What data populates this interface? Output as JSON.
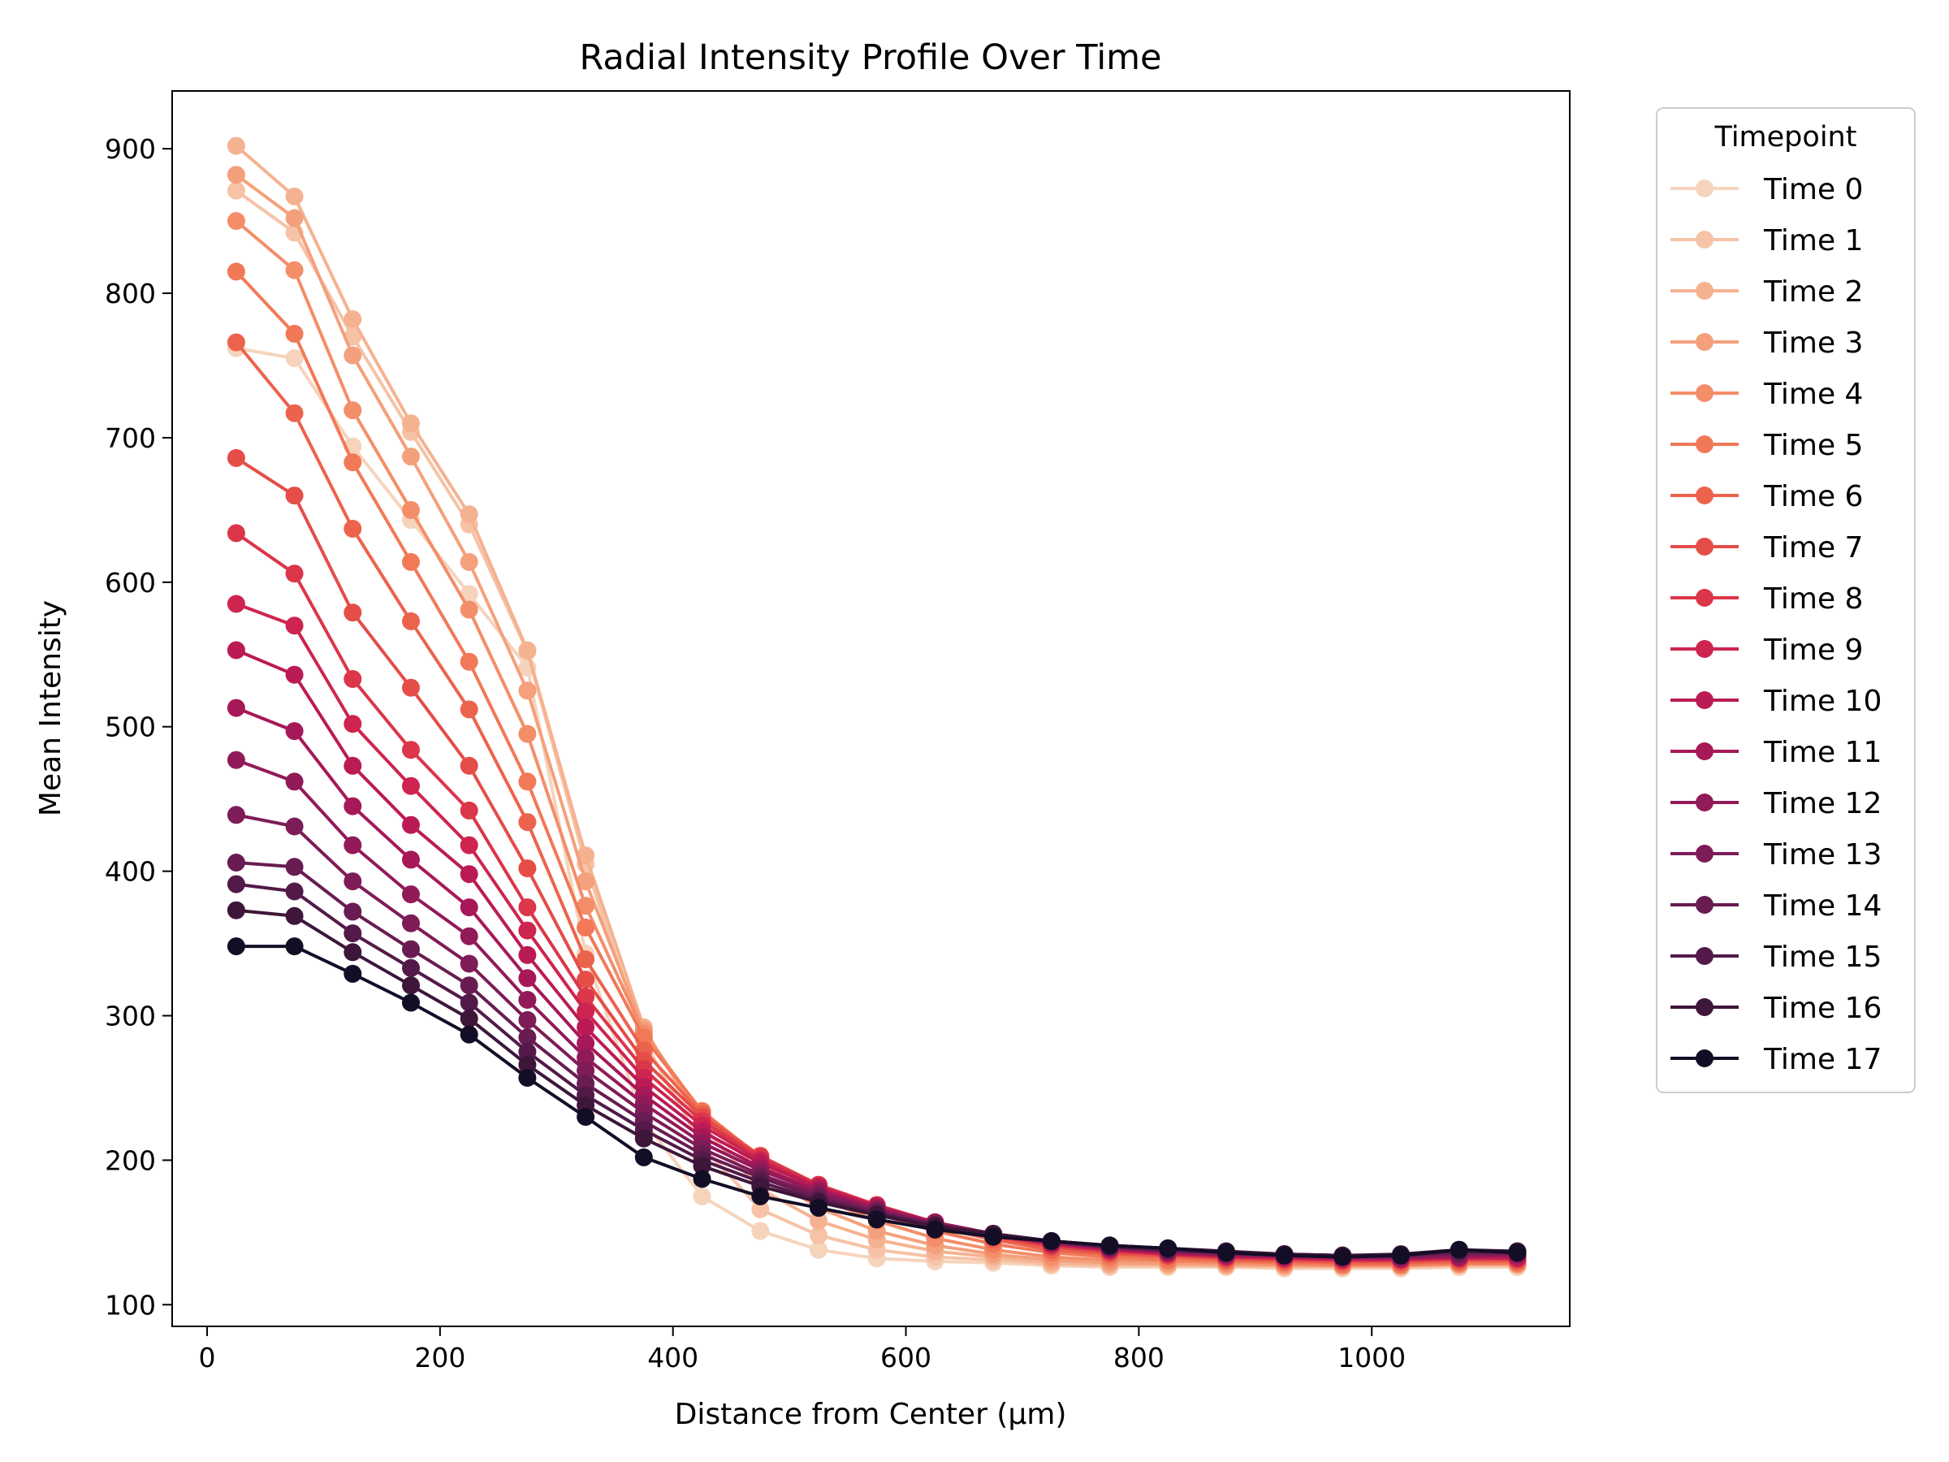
{
  "chart_data": {
    "type": "line",
    "title": "Radial Intensity Profile Over Time",
    "xlabel": "Distance from Center (µm)",
    "ylabel": "Mean Intensity",
    "xlim": [
      -30,
      1170
    ],
    "ylim": [
      85,
      940
    ],
    "xticks": [
      0,
      200,
      400,
      600,
      800,
      1000
    ],
    "yticks": [
      100,
      200,
      300,
      400,
      500,
      600,
      700,
      800,
      900
    ],
    "grid": false,
    "legend": {
      "title": "Timepoint",
      "placement": "outside-right-top"
    },
    "x": [
      25,
      75,
      125,
      175,
      225,
      275,
      325,
      375,
      425,
      475,
      525,
      575,
      625,
      675,
      725,
      775,
      825,
      875,
      925,
      975,
      1025,
      1075,
      1125
    ],
    "series": [
      {
        "name": "Time 0",
        "color": "#f6d4bc",
        "values": [
          762,
          755,
          694,
          643,
          592,
          541,
          343,
          227,
          175,
          151,
          138,
          132,
          130,
          129,
          127,
          126,
          126,
          126,
          125,
          125,
          125,
          126,
          126
        ]
      },
      {
        "name": "Time 1",
        "color": "#f6c3a6",
        "values": [
          871,
          842,
          770,
          704,
          640,
          552,
          405,
          283,
          210,
          166,
          148,
          138,
          133,
          131,
          128,
          127,
          127,
          127,
          126,
          126,
          126,
          127,
          127
        ]
      },
      {
        "name": "Time 2",
        "color": "#f5b291",
        "values": [
          902,
          867,
          782,
          710,
          647,
          553,
          411,
          292,
          224,
          180,
          158,
          145,
          137,
          133,
          129,
          128,
          128,
          127,
          127,
          127,
          127,
          128,
          128
        ]
      },
      {
        "name": "Time 3",
        "color": "#f4a07c",
        "values": [
          882,
          852,
          757,
          687,
          614,
          525,
          393,
          290,
          230,
          192,
          167,
          151,
          141,
          135,
          131,
          129,
          128,
          128,
          127,
          127,
          127,
          128,
          128
        ]
      },
      {
        "name": "Time 4",
        "color": "#f38e69",
        "values": [
          850,
          816,
          719,
          650,
          581,
          495,
          376,
          288,
          233,
          198,
          174,
          158,
          146,
          138,
          133,
          131,
          130,
          129,
          128,
          127,
          127,
          128,
          128
        ]
      },
      {
        "name": "Time 5",
        "color": "#f17958",
        "values": [
          815,
          772,
          683,
          614,
          545,
          462,
          361,
          285,
          234,
          202,
          179,
          163,
          151,
          142,
          136,
          133,
          131,
          130,
          129,
          128,
          128,
          129,
          129
        ]
      },
      {
        "name": "Time 6",
        "color": "#ec634d",
        "values": [
          766,
          717,
          637,
          573,
          512,
          434,
          339,
          276,
          232,
          203,
          182,
          166,
          154,
          145,
          138,
          135,
          133,
          131,
          130,
          129,
          129,
          130,
          130
        ]
      },
      {
        "name": "Time 7",
        "color": "#e54d48",
        "values": [
          686,
          660,
          579,
          527,
          473,
          402,
          325,
          269,
          230,
          203,
          183,
          168,
          156,
          147,
          140,
          136,
          134,
          132,
          131,
          130,
          130,
          131,
          131
        ]
      },
      {
        "name": "Time 8",
        "color": "#db3649",
        "values": [
          634,
          606,
          533,
          484,
          442,
          375,
          313,
          263,
          227,
          202,
          183,
          169,
          157,
          148,
          141,
          137,
          135,
          133,
          132,
          131,
          131,
          132,
          132
        ]
      },
      {
        "name": "Time 9",
        "color": "#cd254f",
        "values": [
          585,
          570,
          502,
          459,
          418,
          359,
          303,
          257,
          224,
          200,
          182,
          168,
          157,
          148,
          142,
          138,
          135,
          133,
          132,
          131,
          131,
          132,
          132
        ]
      },
      {
        "name": "Time 10",
        "color": "#bb1b55",
        "values": [
          553,
          536,
          473,
          432,
          398,
          342,
          292,
          251,
          220,
          198,
          181,
          168,
          157,
          149,
          142,
          138,
          136,
          134,
          133,
          132,
          132,
          133,
          133
        ]
      },
      {
        "name": "Time 11",
        "color": "#a71858",
        "values": [
          513,
          497,
          445,
          408,
          375,
          326,
          281,
          245,
          216,
          195,
          179,
          167,
          157,
          149,
          143,
          139,
          136,
          134,
          133,
          132,
          132,
          133,
          134
        ]
      },
      {
        "name": "Time 12",
        "color": "#921a59",
        "values": [
          477,
          462,
          418,
          384,
          355,
          311,
          271,
          239,
          212,
          193,
          178,
          166,
          156,
          149,
          143,
          139,
          137,
          135,
          134,
          133,
          133,
          134,
          135
        ]
      },
      {
        "name": "Time 13",
        "color": "#7d1c57",
        "values": [
          439,
          431,
          393,
          364,
          336,
          297,
          262,
          233,
          208,
          190,
          176,
          165,
          156,
          149,
          143,
          140,
          137,
          135,
          134,
          133,
          133,
          135,
          135
        ]
      },
      {
        "name": "Time 14",
        "color": "#681c52",
        "values": [
          406,
          403,
          372,
          346,
          321,
          285,
          253,
          227,
          204,
          188,
          174,
          164,
          155,
          149,
          144,
          140,
          138,
          136,
          135,
          134,
          134,
          136,
          136
        ]
      },
      {
        "name": "Time 15",
        "color": "#531a49",
        "values": [
          391,
          386,
          357,
          333,
          309,
          275,
          245,
          221,
          200,
          185,
          172,
          163,
          155,
          149,
          144,
          140,
          138,
          136,
          135,
          134,
          134,
          137,
          136
        ]
      },
      {
        "name": "Time 16",
        "color": "#3d1639",
        "values": [
          373,
          369,
          344,
          321,
          298,
          266,
          238,
          215,
          196,
          182,
          171,
          162,
          154,
          149,
          144,
          141,
          139,
          137,
          135,
          134,
          135,
          138,
          137
        ]
      },
      {
        "name": "Time 17",
        "color": "#140d26",
        "values": [
          348,
          348,
          329,
          309,
          287,
          257,
          230,
          202,
          187,
          175,
          167,
          159,
          152,
          147,
          144,
          141,
          139,
          136,
          134,
          133,
          134,
          138,
          136
        ]
      }
    ]
  }
}
